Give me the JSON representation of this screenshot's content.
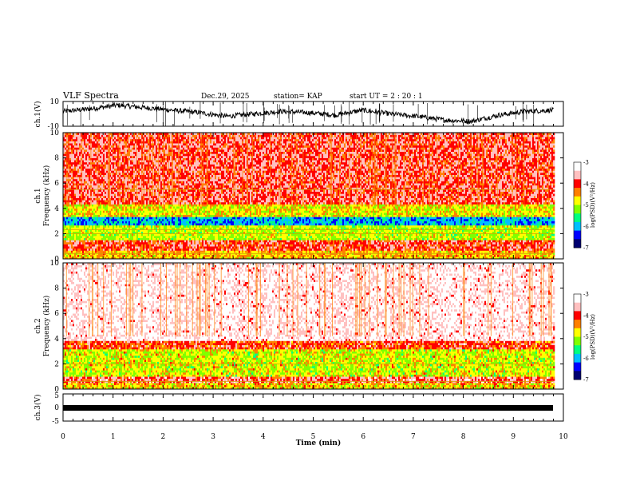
{
  "header": {
    "title": "VLF Spectra",
    "date": "Dec.29, 2025",
    "station": "station= KAP",
    "start": "start  UT =  2 : 20 : 1"
  },
  "chart_data": {
    "type": "heatmap",
    "x_axis": {
      "label": "Time  (min)",
      "range": [
        0,
        10
      ],
      "ticks": [
        "0",
        "1",
        "2",
        "3",
        "4",
        "5",
        "6",
        "7",
        "8",
        "9",
        "10"
      ],
      "data_extent_min": 9.8
    },
    "panels": [
      {
        "id": "ch1-waveform",
        "type": "line",
        "ylabel": "ch.1(V)",
        "ylim": [
          -10,
          10
        ],
        "yticks": [
          "10",
          "-10"
        ],
        "baseline_mean_v": 1.5,
        "description_level": [
          2,
          4,
          7,
          5,
          3,
          1,
          -2,
          0,
          2,
          1,
          -1,
          3,
          0,
          -2,
          -5,
          -6,
          -1,
          2,
          3
        ]
      },
      {
        "id": "ch1-spectrogram",
        "type": "heatmap",
        "ylabel": "Frequency  (kHz)",
        "ylabel2": "ch.1",
        "ylim": [
          0,
          10
        ],
        "yticks": [
          "0",
          "2",
          "4",
          "6",
          "8",
          "10"
        ],
        "bands_khz": [
          {
            "from": 0,
            "to": 0.6,
            "level": -4.6
          },
          {
            "from": 0.6,
            "to": 1.5,
            "level": -4.0
          },
          {
            "from": 1.5,
            "to": 2.6,
            "level": -5.0
          },
          {
            "from": 2.6,
            "to": 3.4,
            "level": -6.0
          },
          {
            "from": 3.4,
            "to": 4.4,
            "level": -4.8
          },
          {
            "from": 4.4,
            "to": 10,
            "level": -3.9
          }
        ],
        "lines_khz": [
          5.5,
          2.3,
          2.0,
          0.4
        ]
      },
      {
        "id": "ch2-spectrogram",
        "type": "heatmap",
        "ylabel": "Frequency  (kHz)",
        "ylabel2": "ch.2",
        "ylim": [
          0,
          10
        ],
        "yticks": [
          "0",
          "2",
          "4",
          "6",
          "8",
          "10"
        ],
        "bands_khz": [
          {
            "from": 0,
            "to": 0.5,
            "level": -4.8
          },
          {
            "from": 0.5,
            "to": 1.0,
            "level": -4.0
          },
          {
            "from": 1.0,
            "to": 3.2,
            "level": -5.0
          },
          {
            "from": 3.2,
            "to": 3.8,
            "level": -4.2
          },
          {
            "from": 3.8,
            "to": 10,
            "level": -3.4
          }
        ],
        "lines_khz": [
          2.0,
          0.6
        ]
      },
      {
        "id": "ch3-waveform",
        "type": "line",
        "ylabel": "ch.3(V)",
        "ylim": [
          -5,
          5
        ],
        "yticks": [
          "5",
          "0",
          "-5"
        ],
        "baseline_mean_v": 0
      }
    ],
    "colorbar": {
      "label": "log(PSD)(V²/Hz)",
      "range": [
        -7,
        -3
      ],
      "ticks": [
        "-3",
        "-4",
        "-5",
        "-6",
        "-7"
      ],
      "colors": [
        "#000070",
        "#0000ff",
        "#00bfff",
        "#00ff80",
        "#80ff00",
        "#ffff00",
        "#ff8000",
        "#ff0000",
        "#ffc0c0",
        "#ffffff"
      ]
    }
  }
}
